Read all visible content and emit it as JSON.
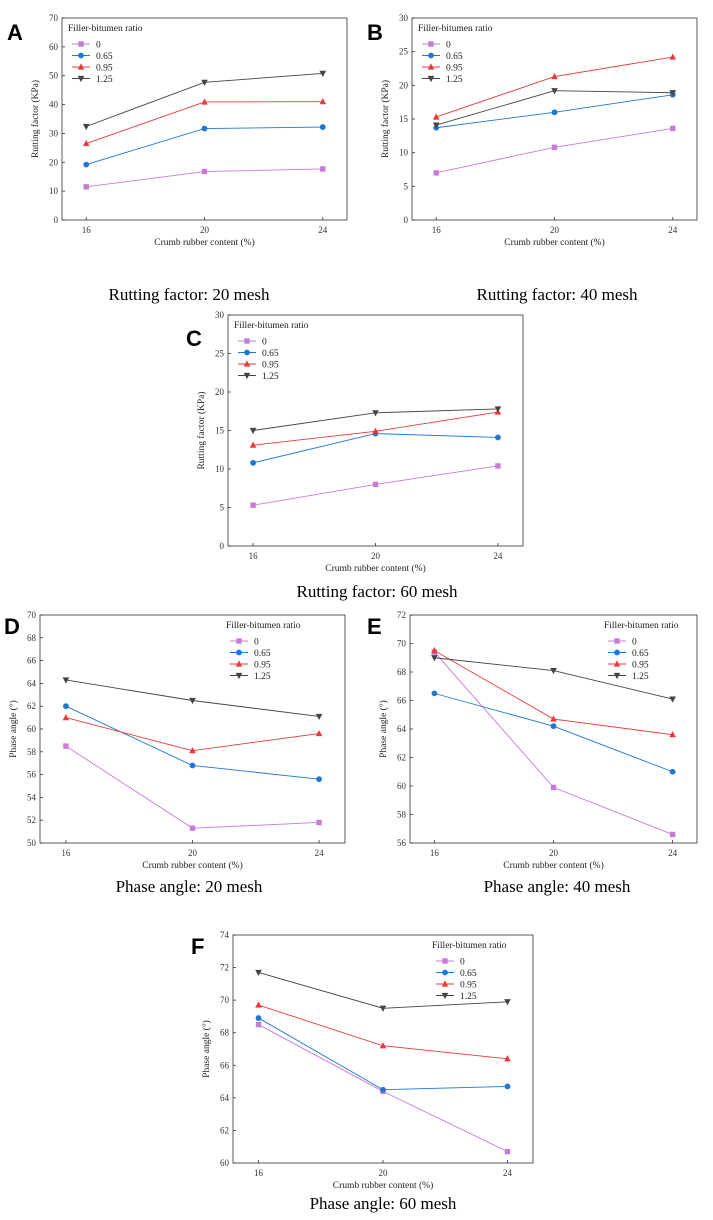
{
  "chart_data": [
    {
      "type": "line",
      "panel": "A",
      "caption": "Rutting factor: 20 mesh",
      "xlabel": "Crumb rubber content (%)",
      "ylabel": "Rutting factor (KPa)",
      "categories": [
        "16",
        "20",
        "24"
      ],
      "yticks": [
        0,
        10,
        20,
        30,
        40,
        50,
        60,
        70
      ],
      "ylim": [
        0,
        70
      ],
      "legend_title": "Filler-bitumen ratio",
      "legend_position": "top-left",
      "series": [
        {
          "name": "0",
          "values": [
            11.5,
            16.8,
            17.7
          ]
        },
        {
          "name": "0.65",
          "values": [
            19.2,
            31.7,
            32.2
          ]
        },
        {
          "name": "0.95",
          "values": [
            26.5,
            40.9,
            41.0
          ]
        },
        {
          "name": "1.25",
          "values": [
            32.4,
            47.7,
            50.8
          ]
        }
      ]
    },
    {
      "type": "line",
      "panel": "B",
      "caption": "Rutting factor: 40 mesh",
      "xlabel": "Crumb rubber content (%)",
      "ylabel": "Rutting factor (KPa)",
      "categories": [
        "16",
        "20",
        "24"
      ],
      "yticks": [
        0,
        5,
        10,
        15,
        20,
        25,
        30
      ],
      "ylim": [
        0,
        30
      ],
      "legend_title": "Filler-bitumen ratio",
      "legend_position": "top-left",
      "series": [
        {
          "name": "0",
          "values": [
            7.0,
            10.8,
            13.6
          ]
        },
        {
          "name": "0.65",
          "values": [
            13.7,
            16.0,
            18.6
          ]
        },
        {
          "name": "0.95",
          "values": [
            15.3,
            21.3,
            24.2
          ]
        },
        {
          "name": "1.25",
          "values": [
            14.1,
            19.2,
            18.9
          ]
        }
      ]
    },
    {
      "type": "line",
      "panel": "C",
      "caption": "Rutting factor: 60 mesh",
      "xlabel": "Crumb rubber content (%)",
      "ylabel": "Rutting factor (KPa)",
      "categories": [
        "16",
        "20",
        "24"
      ],
      "yticks": [
        0,
        5,
        10,
        15,
        20,
        25,
        30
      ],
      "ylim": [
        0,
        30
      ],
      "legend_title": "Filler-bitumen ratio",
      "legend_position": "top-left",
      "series": [
        {
          "name": "0",
          "values": [
            5.3,
            8.0,
            10.4
          ]
        },
        {
          "name": "0.65",
          "values": [
            10.8,
            14.6,
            14.1
          ]
        },
        {
          "name": "0.95",
          "values": [
            13.1,
            14.9,
            17.4
          ]
        },
        {
          "name": "1.25",
          "values": [
            15.0,
            17.3,
            17.8
          ]
        }
      ]
    },
    {
      "type": "line",
      "panel": "D",
      "caption": "Phase angle: 20 mesh",
      "xlabel": "Crumb rubber content (%)",
      "ylabel": "Phase angle (°)",
      "categories": [
        "16",
        "20",
        "24"
      ],
      "yticks": [
        50,
        52,
        54,
        56,
        58,
        60,
        62,
        64,
        66,
        68,
        70
      ],
      "ylim": [
        50,
        70
      ],
      "legend_title": "Filler-bitumen ratio",
      "legend_position": "top-right",
      "series": [
        {
          "name": "0",
          "values": [
            58.5,
            51.3,
            51.8
          ]
        },
        {
          "name": "0.65",
          "values": [
            62.0,
            56.8,
            55.6
          ]
        },
        {
          "name": "0.95",
          "values": [
            61.0,
            58.1,
            59.6
          ]
        },
        {
          "name": "1.25",
          "values": [
            64.3,
            62.5,
            61.1
          ]
        }
      ]
    },
    {
      "type": "line",
      "panel": "E",
      "caption": "Phase angle: 40 mesh",
      "xlabel": "Crumb rubber content (%)",
      "ylabel": "Phase angle (°)",
      "categories": [
        "16",
        "20",
        "24"
      ],
      "yticks": [
        56,
        58,
        60,
        62,
        64,
        66,
        68,
        70,
        72
      ],
      "ylim": [
        56,
        72
      ],
      "legend_title": "Filler-bitumen ratio",
      "legend_position": "top-right",
      "series": [
        {
          "name": "0",
          "values": [
            69.4,
            59.9,
            56.6
          ]
        },
        {
          "name": "0.65",
          "values": [
            66.5,
            64.2,
            61.0
          ]
        },
        {
          "name": "0.95",
          "values": [
            69.5,
            64.7,
            63.6
          ]
        },
        {
          "name": "1.25",
          "values": [
            69.0,
            68.1,
            66.1
          ]
        }
      ]
    },
    {
      "type": "line",
      "panel": "F",
      "caption": "Phase angle: 60 mesh",
      "xlabel": "Crumb rubber content (%)",
      "ylabel": "Phase angle (°)",
      "categories": [
        "16",
        "20",
        "24"
      ],
      "yticks": [
        60,
        62,
        64,
        66,
        68,
        70,
        72,
        74
      ],
      "ylim": [
        60,
        74
      ],
      "legend_title": "Filler-bitumen ratio",
      "legend_position": "top-right",
      "series": [
        {
          "name": "0",
          "values": [
            68.5,
            64.4,
            60.7
          ]
        },
        {
          "name": "0.65",
          "values": [
            68.9,
            64.5,
            64.7
          ]
        },
        {
          "name": "0.95",
          "values": [
            69.7,
            67.2,
            66.4
          ]
        },
        {
          "name": "1.25",
          "values": [
            71.7,
            69.5,
            69.9
          ]
        }
      ]
    }
  ],
  "series_style": {
    "0": {
      "color": "#c77bd9",
      "marker": "square"
    },
    "0.65": {
      "color": "#1f77d4",
      "marker": "circle"
    },
    "0.95": {
      "color": "#e83a3a",
      "marker": "triangle-up"
    },
    "1.25": {
      "color": "#444444",
      "marker": "triangle-down"
    }
  }
}
